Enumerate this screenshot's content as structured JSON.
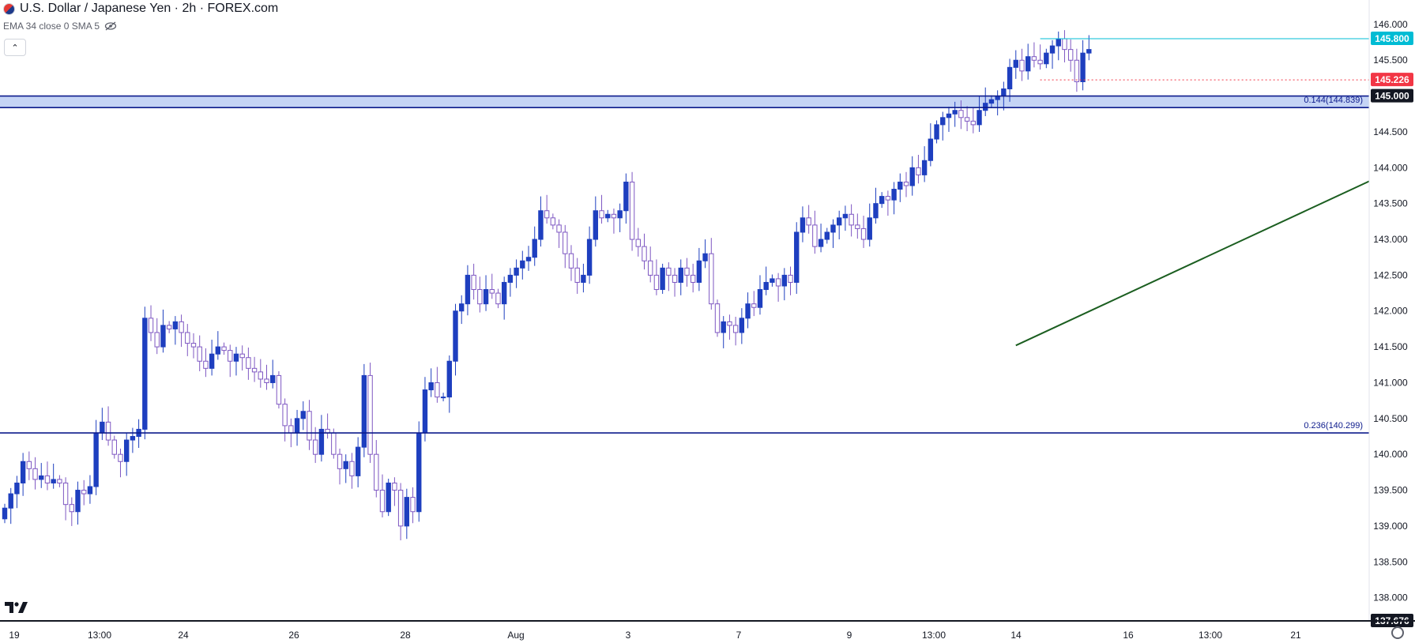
{
  "header": {
    "title": "U.S. Dollar / Japanese Yen · 2h · FOREX.com",
    "indicator": "EMA 34 close 0 SMA 5"
  },
  "colors": {
    "up": "#1e3fbf",
    "down": "#7e57c2",
    "trendline": "#1b5e20",
    "level_line": "#0d1b8c",
    "zone_fill": "#c5d4f5",
    "current_price": "#00bcd4",
    "previous_close": "#f23645"
  },
  "chart_data": {
    "type": "candlestick",
    "ylim": [
      137.676,
      146.12
    ],
    "x_ticks": [
      "19",
      "13:00",
      "24",
      "26",
      "28",
      "Aug",
      "3",
      "7",
      "9",
      "13:00",
      "14",
      "16",
      "13:00",
      "21"
    ],
    "y_ticks": [
      "138.000",
      "138.500",
      "139.000",
      "139.500",
      "140.000",
      "140.500",
      "141.000",
      "141.500",
      "142.000",
      "142.500",
      "143.000",
      "143.500",
      "144.000",
      "144.500",
      "145.000",
      "145.500",
      "146.000"
    ],
    "price_labels": [
      {
        "value": 145.8,
        "label": "145.800",
        "kind": "current-price"
      },
      {
        "value": 145.226,
        "label": "145.226",
        "kind": "previous-close"
      },
      {
        "value": 145.0,
        "label": "145.000",
        "kind": "zone-top"
      },
      {
        "value": 137.676,
        "label": "137.676",
        "kind": "axis-low"
      }
    ],
    "fib_levels": [
      {
        "value": 144.839,
        "label": "0.144(144.839)"
      },
      {
        "value": 140.299,
        "label": "0.236(140.299)"
      }
    ],
    "zone": [
      144.839,
      145.0
    ],
    "trendline": {
      "from": {
        "bar": 166,
        "price": 141.52
      },
      "to": {
        "bar": 285,
        "price": 146.22
      }
    },
    "candles_close": [
      139.25,
      139.45,
      139.6,
      139.9,
      139.8,
      139.65,
      139.7,
      139.6,
      139.65,
      139.6,
      139.3,
      139.2,
      139.5,
      139.45,
      139.55,
      140.3,
      140.45,
      140.2,
      140.0,
      139.9,
      140.2,
      140.25,
      140.35,
      141.9,
      141.7,
      141.5,
      141.8,
      141.75,
      141.85,
      141.7,
      141.55,
      141.5,
      141.3,
      141.2,
      141.4,
      141.5,
      141.45,
      141.3,
      141.4,
      141.35,
      141.2,
      141.15,
      141.05,
      141.0,
      141.1,
      140.7,
      140.4,
      140.3,
      140.5,
      140.6,
      140.2,
      140.0,
      140.35,
      140.3,
      140.0,
      139.8,
      139.9,
      139.7,
      140.1,
      141.1,
      140.0,
      139.5,
      139.2,
      139.6,
      139.5,
      139.0,
      139.4,
      139.2,
      140.3,
      140.9,
      141.0,
      140.8,
      140.8,
      141.3,
      142.0,
      142.1,
      142.5,
      142.3,
      142.1,
      142.3,
      142.25,
      142.1,
      142.4,
      142.5,
      142.6,
      142.7,
      142.75,
      143.0,
      143.4,
      143.3,
      143.2,
      143.1,
      142.8,
      142.6,
      142.4,
      142.5,
      143.0,
      143.4,
      143.3,
      143.35,
      143.3,
      143.4,
      143.8,
      143.0,
      142.9,
      142.7,
      142.5,
      142.3,
      142.6,
      142.5,
      142.4,
      142.6,
      142.5,
      142.4,
      142.7,
      142.8,
      142.1,
      141.7,
      141.85,
      141.8,
      141.7,
      141.9,
      142.1,
      142.05,
      142.3,
      142.4,
      142.45,
      142.35,
      142.5,
      142.4,
      143.1,
      143.3,
      143.2,
      142.9,
      143.0,
      143.1,
      143.2,
      143.3,
      143.35,
      143.2,
      143.15,
      143.0,
      143.3,
      143.5,
      143.6,
      143.55,
      143.7,
      143.8,
      143.75,
      144.0,
      143.9,
      144.1,
      144.4,
      144.6,
      144.7,
      144.75,
      144.8,
      144.7,
      144.65,
      144.6,
      144.8,
      144.9,
      144.95,
      145.0,
      145.1,
      145.4,
      145.5,
      145.35,
      145.55,
      145.5,
      145.45,
      145.6,
      145.7,
      145.8,
      145.65,
      145.5,
      145.2,
      145.6,
      145.65
    ],
    "candles_range": "each candle drawn with open = previous close; wick extends beyond body"
  },
  "x_axis_labels_shown": [
    "19",
    "13:00",
    "24",
    "26",
    "28",
    "Aug",
    "3",
    "7",
    "9",
    "13:00",
    "14",
    "16",
    "13:00",
    "21"
  ]
}
